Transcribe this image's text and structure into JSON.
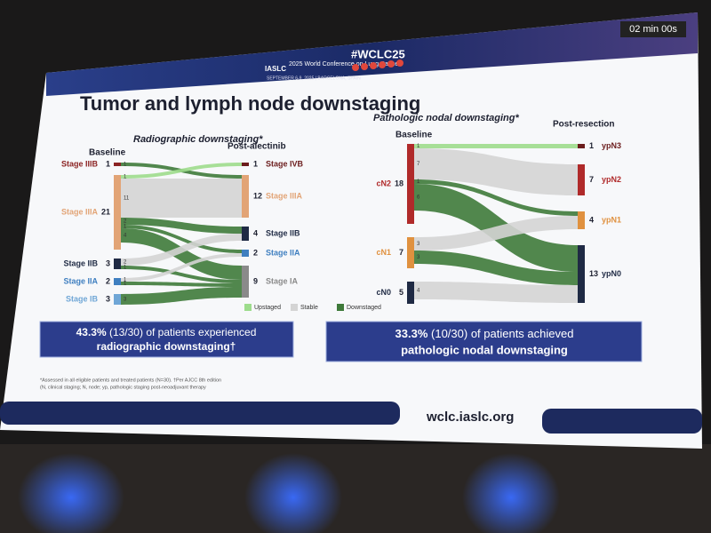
{
  "screen": {
    "timer": "02 min 00s"
  },
  "header": {
    "society": "IASLC",
    "conference": "2025 World Conference on Lung Cancer",
    "dates": "SEPTEMBER 6-9, 2025 | BARCELONA, SPAIN",
    "hashtag": "#WCLC25"
  },
  "title": "Tumor and lymph node downstaging",
  "chart_data": [
    {
      "type": "sankey",
      "title": "Radiographic downstaging*",
      "left_label": "Baseline",
      "right_label": "Post-alectinib",
      "left": [
        {
          "name": "Stage IIIB",
          "value": 1,
          "color": "#8b2323",
          "flows": [
            {
              "target": 1,
              "value": 1,
              "color": "#3e7a3a"
            }
          ]
        },
        {
          "name": "Stage IIIA",
          "value": 21,
          "color": "#e2a476",
          "flows": [
            {
              "target": 0,
              "value": 1,
              "color": "#9ddc8c"
            },
            {
              "target": 1,
              "value": 11,
              "color": "#d4d4d4"
            },
            {
              "target": 2,
              "value": 2,
              "color": "#3e7a3a"
            },
            {
              "target": 3,
              "value": 1,
              "color": "#3e7a3a"
            },
            {
              "target": 4,
              "value": 4,
              "color": "#3e7a3a"
            }
          ]
        },
        {
          "name": "Stage IIB",
          "value": 3,
          "color": "#1f2a44",
          "flows": [
            {
              "target": 2,
              "value": 2,
              "color": "#d4d4d4"
            },
            {
              "target": 4,
              "value": 1,
              "color": "#3e7a3a"
            }
          ]
        },
        {
          "name": "Stage IIA",
          "value": 2,
          "color": "#3f7fc0",
          "flows": [
            {
              "target": 3,
              "value": 1,
              "color": "#d4d4d4"
            },
            {
              "target": 4,
              "value": 1,
              "color": "#3e7a3a"
            }
          ]
        },
        {
          "name": "Stage IB",
          "value": 3,
          "color": "#6fa6d6",
          "flows": [
            {
              "target": 4,
              "value": 3,
              "color": "#3e7a3a"
            }
          ]
        }
      ],
      "right": [
        {
          "name": "Stage IVB",
          "value": 1,
          "color": "#6b1c1c"
        },
        {
          "name": "Stage IIIA",
          "value": 12,
          "color": "#e2a476"
        },
        {
          "name": "Stage IIB",
          "value": 4,
          "color": "#1f2a44"
        },
        {
          "name": "Stage IIA",
          "value": 2,
          "color": "#3f7fc0"
        },
        {
          "name": "Stage IA",
          "value": 9,
          "color": "#8a8a8a"
        }
      ],
      "legend": [
        {
          "name": "Upstaged",
          "color": "#9ddc8c"
        },
        {
          "name": "Stable",
          "color": "#d4d4d4"
        },
        {
          "name": "Downstaged",
          "color": "#3e7a3a"
        }
      ]
    },
    {
      "type": "sankey",
      "title": "Pathologic nodal downstaging*",
      "left_label": "Baseline",
      "right_label": "Post-resection",
      "left": [
        {
          "name": "cN2",
          "value": 18,
          "color": "#b02a2a",
          "flows": [
            {
              "target": 0,
              "value": 1,
              "color": "#9ddc8c"
            },
            {
              "target": 1,
              "value": 7,
              "color": "#d4d4d4"
            },
            {
              "target": 2,
              "value": 1,
              "color": "#3e7a3a"
            },
            {
              "target": 3,
              "value": 6,
              "color": "#3e7a3a"
            }
          ]
        },
        {
          "name": "cN1",
          "value": 7,
          "color": "#e0913f",
          "flows": [
            {
              "target": 2,
              "value": 3,
              "color": "#d4d4d4"
            },
            {
              "target": 3,
              "value": 3,
              "color": "#3e7a3a"
            }
          ]
        },
        {
          "name": "cN0",
          "value": 5,
          "color": "#1f2a44",
          "flows": [
            {
              "target": 3,
              "value": 4,
              "color": "#d4d4d4"
            }
          ]
        }
      ],
      "right": [
        {
          "name": "ypN3",
          "value": 1,
          "color": "#6b1c1c"
        },
        {
          "name": "ypN2",
          "value": 7,
          "color": "#b02a2a"
        },
        {
          "name": "ypN1",
          "value": 4,
          "color": "#e0913f"
        },
        {
          "name": "ypN0",
          "value": 13,
          "color": "#1f2a44"
        }
      ]
    }
  ],
  "callouts": [
    {
      "parts": [
        "43.3%",
        " (13/30) of patients experienced",
        "radiographic downstaging†"
      ]
    },
    {
      "parts": [
        "33.3%",
        " (10/30) of patients achieved",
        "pathologic nodal downstaging"
      ]
    }
  ],
  "footnote": [
    "*Assessed in all eligible patients and treated patients (N=30). †Per AJCC 8th edition",
    "(N, clinical staging; N, node; yp, pathologic staging post-neoadjuvant therapy"
  ],
  "footer": {
    "url": "wclc.iaslc.org"
  }
}
